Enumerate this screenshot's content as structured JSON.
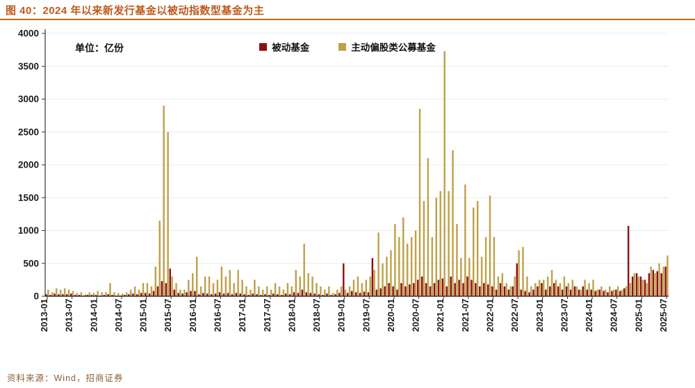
{
  "page": {
    "title": "图 40：2024 年以来新发行基金以被动指数型基金为主",
    "source": "资料来源：Wind，招商证券"
  },
  "chart_data": {
    "type": "bar",
    "title": "2024 年以来新发行基金以被动指数型基金为主",
    "unit_label": "单位：亿份",
    "xlabel": "",
    "ylabel": "亿份",
    "ylim": [
      0,
      4000
    ],
    "ytick_interval": 500,
    "xtick_interval_months": 6,
    "legend_position": "top-center",
    "grid": "light-horizontal",
    "colors": {
      "passive": "#8e1010",
      "active": "#bfa14a",
      "title": "#c0591b",
      "axis": "#333333"
    },
    "categories": [
      "2013-01",
      "2013-02",
      "2013-03",
      "2013-04",
      "2013-05",
      "2013-06",
      "2013-07",
      "2013-08",
      "2013-09",
      "2013-10",
      "2013-11",
      "2013-12",
      "2014-01",
      "2014-02",
      "2014-03",
      "2014-04",
      "2014-05",
      "2014-06",
      "2014-07",
      "2014-08",
      "2014-09",
      "2014-10",
      "2014-11",
      "2014-12",
      "2015-01",
      "2015-02",
      "2015-03",
      "2015-04",
      "2015-05",
      "2015-06",
      "2015-07",
      "2015-08",
      "2015-09",
      "2015-10",
      "2015-11",
      "2015-12",
      "2016-01",
      "2016-02",
      "2016-03",
      "2016-04",
      "2016-05",
      "2016-06",
      "2016-07",
      "2016-08",
      "2016-09",
      "2016-10",
      "2016-11",
      "2016-12",
      "2017-01",
      "2017-02",
      "2017-03",
      "2017-04",
      "2017-05",
      "2017-06",
      "2017-07",
      "2017-08",
      "2017-09",
      "2017-10",
      "2017-11",
      "2017-12",
      "2018-01",
      "2018-02",
      "2018-03",
      "2018-04",
      "2018-05",
      "2018-06",
      "2018-07",
      "2018-08",
      "2018-09",
      "2018-10",
      "2018-11",
      "2018-12",
      "2019-01",
      "2019-02",
      "2019-03",
      "2019-04",
      "2019-05",
      "2019-06",
      "2019-07",
      "2019-08",
      "2019-09",
      "2019-10",
      "2019-11",
      "2019-12",
      "2020-01",
      "2020-02",
      "2020-03",
      "2020-04",
      "2020-05",
      "2020-06",
      "2020-07",
      "2020-08",
      "2020-09",
      "2020-10",
      "2020-11",
      "2020-12",
      "2021-01",
      "2021-02",
      "2021-03",
      "2021-04",
      "2021-05",
      "2021-06",
      "2021-07",
      "2021-08",
      "2021-09",
      "2021-10",
      "2021-11",
      "2021-12",
      "2022-01",
      "2022-02",
      "2022-03",
      "2022-04",
      "2022-05",
      "2022-06",
      "2022-07",
      "2022-08",
      "2022-09",
      "2022-10",
      "2022-11",
      "2022-12",
      "2023-01",
      "2023-02",
      "2023-03",
      "2023-04",
      "2023-05",
      "2023-06",
      "2023-07",
      "2023-08",
      "2023-09",
      "2023-10",
      "2023-11",
      "2023-12",
      "2024-01",
      "2024-02",
      "2024-03",
      "2024-04",
      "2024-05",
      "2024-06",
      "2024-07",
      "2024-08",
      "2024-09",
      "2024-10",
      "2024-11",
      "2024-12",
      "2025-01",
      "2025-02",
      "2025-03",
      "2025-04",
      "2025-05",
      "2025-06",
      "2025-07"
    ],
    "xtick_labels": [
      "2013-01",
      "2013-07",
      "2014-01",
      "2014-07",
      "2015-01",
      "2015-07",
      "2016-01",
      "2016-07",
      "2017-01",
      "2017-07",
      "2018-01",
      "2018-07",
      "2019-01",
      "2019-07",
      "2020-01",
      "2020-07",
      "2021-01",
      "2021-07",
      "2022-01",
      "2022-07",
      "2023-01",
      "2023-07",
      "2024-01",
      "2024-07",
      "2025-01",
      "2025-07"
    ],
    "ytick_labels": [
      "0",
      "500",
      "1000",
      "1500",
      "2000",
      "2500",
      "3000",
      "3500",
      "4000"
    ],
    "series": [
      {
        "name": "被动基金",
        "color": "#8e1010",
        "values": [
          30,
          20,
          40,
          30,
          30,
          30,
          40,
          20,
          20,
          10,
          20,
          20,
          20,
          10,
          20,
          30,
          20,
          10,
          10,
          20,
          30,
          40,
          30,
          50,
          50,
          40,
          80,
          150,
          230,
          200,
          420,
          100,
          50,
          40,
          60,
          80,
          80,
          30,
          50,
          40,
          30,
          40,
          60,
          40,
          50,
          30,
          50,
          40,
          30,
          20,
          40,
          30,
          20,
          30,
          20,
          40,
          30,
          20,
          40,
          30,
          60,
          50,
          100,
          60,
          50,
          40,
          30,
          20,
          40,
          20,
          30,
          50,
          500,
          50,
          80,
          60,
          50,
          70,
          60,
          580,
          100,
          120,
          150,
          200,
          150,
          100,
          200,
          150,
          180,
          200,
          250,
          300,
          200,
          150,
          200,
          250,
          270,
          150,
          300,
          200,
          250,
          200,
          300,
          250,
          200,
          150,
          200,
          180,
          150,
          100,
          200,
          150,
          100,
          150,
          500,
          100,
          80,
          60,
          100,
          150,
          200,
          100,
          150,
          200,
          150,
          100,
          150,
          100,
          150,
          100,
          150,
          100,
          100,
          80,
          100,
          80,
          60,
          80,
          100,
          80,
          120,
          1070,
          300,
          350,
          300,
          250,
          350,
          400,
          380,
          350,
          450
        ]
      },
      {
        "name": "主动偏股类公募基金",
        "color": "#bfa14a",
        "values": [
          100,
          60,
          120,
          100,
          120,
          100,
          80,
          50,
          60,
          30,
          60,
          50,
          80,
          60,
          60,
          200,
          60,
          50,
          40,
          60,
          100,
          150,
          100,
          200,
          200,
          150,
          450,
          1150,
          2900,
          2500,
          300,
          200,
          100,
          100,
          250,
          350,
          600,
          150,
          300,
          300,
          200,
          250,
          450,
          300,
          400,
          200,
          400,
          250,
          150,
          100,
          250,
          150,
          100,
          150,
          100,
          200,
          150,
          100,
          200,
          150,
          400,
          300,
          800,
          350,
          300,
          200,
          150,
          100,
          150,
          50,
          100,
          150,
          100,
          150,
          250,
          300,
          200,
          250,
          300,
          400,
          970,
          500,
          600,
          700,
          1100,
          900,
          1200,
          800,
          900,
          1000,
          2850,
          1450,
          2100,
          900,
          1500,
          1600,
          3730,
          1600,
          2220,
          1100,
          580,
          1700,
          580,
          1350,
          1450,
          600,
          900,
          1530,
          900,
          300,
          350,
          200,
          150,
          300,
          700,
          750,
          300,
          150,
          200,
          250,
          250,
          300,
          400,
          250,
          200,
          300,
          200,
          250,
          150,
          100,
          250,
          200,
          250,
          100,
          150,
          100,
          150,
          100,
          150,
          100,
          150,
          200,
          350,
          300,
          250,
          200,
          450,
          350,
          500,
          450,
          620
        ]
      }
    ]
  }
}
